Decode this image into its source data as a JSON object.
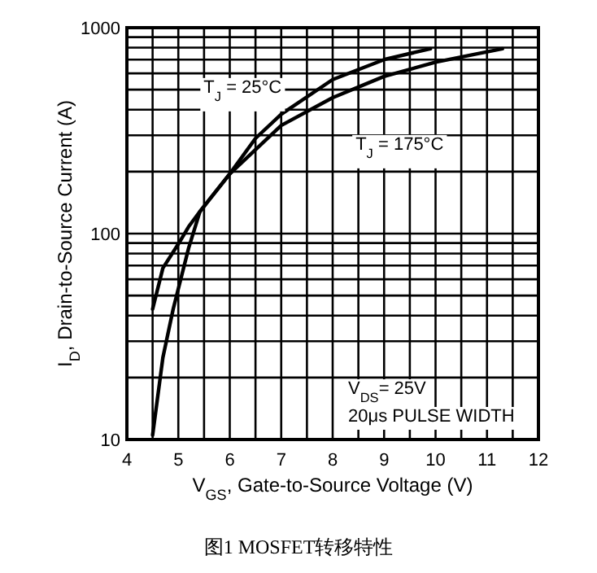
{
  "chart_data": {
    "type": "line",
    "xlabel": "V$_{GS}$, Gate-to-Source Voltage (V)",
    "ylabel": "I$_{D}$, Drain-to-Source Current (A)",
    "log": "y",
    "grid": true,
    "legend": false,
    "xlim": [
      4,
      12
    ],
    "ylim": [
      10,
      1000
    ],
    "xticks": [
      4,
      {
        "value": 4.5,
        "label": null
      },
      5,
      {
        "value": 5.5,
        "label": null
      },
      6,
      {
        "value": 6.5,
        "label": null
      },
      7,
      {
        "value": 7.5,
        "label": null
      },
      8,
      {
        "value": 8.5,
        "label": null
      },
      9,
      {
        "value": 9.5,
        "label": null
      },
      10,
      {
        "value": 10.5,
        "label": null
      },
      11,
      {
        "value": 11.5,
        "label": null
      },
      12
    ],
    "yticks": [
      10,
      {
        "value": 20,
        "label": null
      },
      {
        "value": 30,
        "label": null
      },
      {
        "value": 40,
        "label": null
      },
      {
        "value": 50,
        "label": null
      },
      {
        "value": 60,
        "label": null
      },
      {
        "value": 70,
        "label": null
      },
      {
        "value": 80,
        "label": null
      },
      {
        "value": 90,
        "label": null
      },
      100,
      {
        "value": 200,
        "label": null
      },
      {
        "value": 300,
        "label": null
      },
      {
        "value": 400,
        "label": null
      },
      {
        "value": 500,
        "label": null
      },
      {
        "value": 600,
        "label": null
      },
      {
        "value": 700,
        "label": null
      },
      {
        "value": 800,
        "label": null
      },
      {
        "value": 900,
        "label": null
      },
      1000
    ],
    "line_style": "solid",
    "series": [
      {
        "name": "T$_{J}$ = 25°C",
        "color": "#000000",
        "x": [
          4.5,
          4.7,
          5.0,
          5.2,
          5.42,
          6.0,
          6.5,
          7.0,
          8.0,
          9.0,
          9.9
        ],
        "values": [
          43,
          68,
          89,
          108,
          128,
          195,
          290,
          380,
          560,
          700,
          790
        ]
      },
      {
        "name": "T$_{J}$ = 175°C",
        "color": "#000000",
        "x": [
          4.5,
          4.7,
          4.9,
          5.2,
          5.42,
          6.0,
          7.0,
          8.0,
          9.0,
          10.0,
          11.3
        ],
        "values": [
          10.5,
          25,
          43,
          85,
          128,
          195,
          335,
          457,
          580,
          680,
          790
        ]
      }
    ],
    "annotations": [
      "V$_{DS}$= 25V",
      "20μs PULSE WIDTH",
      "图1 MOSFET转移特性"
    ]
  }
}
